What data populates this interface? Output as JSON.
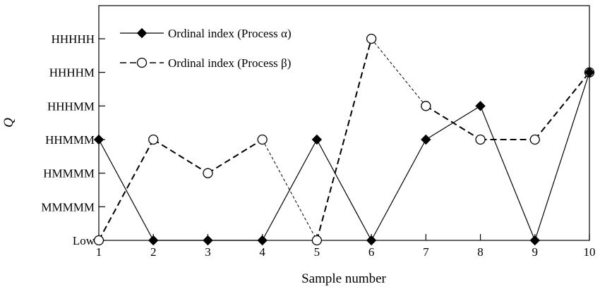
{
  "chart_data": {
    "type": "line",
    "title": "",
    "xlabel": "Sample number",
    "ylabel": "Q",
    "x": [
      1,
      2,
      3,
      4,
      5,
      6,
      7,
      8,
      9,
      10
    ],
    "x_tick_labels": [
      "1",
      "2",
      "3",
      "4",
      "5",
      "6",
      "7",
      "8",
      "9",
      "10"
    ],
    "y_categories": [
      "Low",
      "MMMMM",
      "HMMMM",
      "HHMMM",
      "HHHMM",
      "HHHHM",
      "HHHHH"
    ],
    "xlim": [
      1,
      10
    ],
    "ylim_index": [
      0,
      6
    ],
    "grid": false,
    "legend_position": "top-left",
    "series": [
      {
        "name": "Ordinal index (Process α)",
        "marker": "filled-diamond",
        "line_style": "solid",
        "color": "#000000",
        "values": [
          "HHMMM",
          "Low",
          "Low",
          "Low",
          "HHMMM",
          "Low",
          "HHMMM",
          "HHHMM",
          "Low",
          "HHHHM"
        ]
      },
      {
        "name": "Ordinal index (Process β)",
        "marker": "open-circle",
        "line_style": "dashed",
        "color": "#000000",
        "values": [
          "Low",
          "HHMMM",
          "HMMMM",
          "HHMMM",
          "Low",
          "HHHHH",
          "HHHMM",
          "HHMMM",
          "HHMMM",
          "HHHHM"
        ]
      }
    ]
  }
}
